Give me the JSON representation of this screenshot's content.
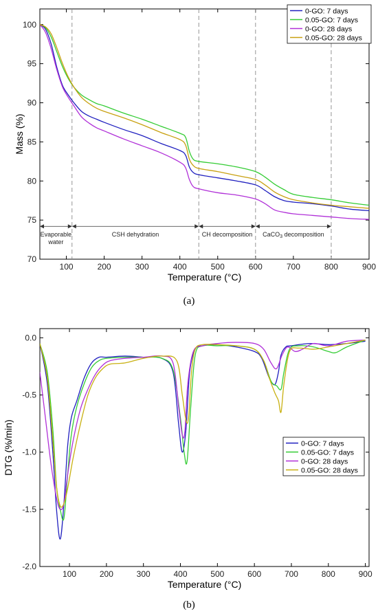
{
  "chart_data": [
    {
      "type": "line",
      "panel_label": "(a)",
      "xlabel": "Temperature (°C)",
      "ylabel": "Mass (%)",
      "xlim": [
        30,
        900
      ],
      "ylim": [
        70,
        102
      ],
      "xticks": [
        100,
        200,
        300,
        400,
        500,
        600,
        700,
        800,
        900
      ],
      "yticks": [
        70,
        75,
        80,
        85,
        90,
        95,
        100
      ],
      "grid": false,
      "legend_position": "top-right",
      "colors": [
        "#1f1fbf",
        "#33cc33",
        "#b030d8",
        "#c8a010"
      ],
      "vlines": [
        115,
        450,
        600,
        800
      ],
      "regions": [
        {
          "label": "Evaporable",
          "label2": "water",
          "x0": 30,
          "x1": 115
        },
        {
          "label": "CSH dehydration",
          "x0": 115,
          "x1": 450
        },
        {
          "label": "CH decomposition",
          "x0": 450,
          "x1": 600
        },
        {
          "label": "CaCO",
          "sub": "3",
          "tail": " decomposition",
          "x0": 600,
          "x1": 800
        }
      ],
      "region_arrow_y": 74.2,
      "series": [
        {
          "name": "0-GO: 7 days",
          "x": [
            30,
            45,
            60,
            75,
            90,
            105,
            120,
            140,
            160,
            180,
            200,
            250,
            300,
            350,
            400,
            415,
            425,
            435,
            450,
            500,
            550,
            600,
            625,
            650,
            675,
            700,
            750,
            800,
            850,
            900
          ],
          "y": [
            100,
            99.4,
            97.5,
            94.5,
            92.2,
            91,
            90,
            88.9,
            88.3,
            87.9,
            87.5,
            86.6,
            85.8,
            84.8,
            83.9,
            83.3,
            81.8,
            81.1,
            80.8,
            80.4,
            80.0,
            79.5,
            78.8,
            78.0,
            77.5,
            77.3,
            77.1,
            76.8,
            76.4,
            76.2
          ]
        },
        {
          "name": "0.05-GO: 7 days",
          "x": [
            30,
            45,
            60,
            75,
            90,
            105,
            120,
            140,
            160,
            180,
            200,
            250,
            300,
            350,
            400,
            415,
            425,
            435,
            450,
            500,
            550,
            600,
            625,
            650,
            675,
            700,
            750,
            800,
            850,
            900
          ],
          "y": [
            100,
            99.6,
            98.4,
            96.5,
            94.6,
            93.1,
            92.0,
            91.0,
            90.4,
            89.9,
            89.6,
            88.7,
            87.9,
            87.0,
            86.1,
            85.6,
            83.8,
            82.8,
            82.5,
            82.2,
            81.8,
            81.2,
            80.5,
            79.6,
            78.9,
            78.3,
            77.9,
            77.6,
            77.2,
            76.9
          ]
        },
        {
          "name": "0-GO: 28 days",
          "x": [
            30,
            45,
            60,
            75,
            90,
            105,
            120,
            140,
            160,
            180,
            200,
            250,
            300,
            350,
            400,
            415,
            425,
            435,
            450,
            500,
            550,
            600,
            625,
            650,
            675,
            700,
            750,
            800,
            850,
            900
          ],
          "y": [
            100,
            99.0,
            96.9,
            94.2,
            92.0,
            90.7,
            89.6,
            88.2,
            87.4,
            86.8,
            86.4,
            85.4,
            84.5,
            83.6,
            82.4,
            81.7,
            80.2,
            79.3,
            79.0,
            78.5,
            78.2,
            77.7,
            77.1,
            76.3,
            76.0,
            75.8,
            75.6,
            75.4,
            75.2,
            75.1
          ]
        },
        {
          "name": "0.05-GO: 28 days",
          "x": [
            30,
            45,
            60,
            75,
            90,
            105,
            120,
            140,
            160,
            180,
            200,
            250,
            300,
            350,
            400,
            415,
            425,
            435,
            450,
            500,
            550,
            600,
            625,
            650,
            675,
            700,
            750,
            800,
            850,
            900
          ],
          "y": [
            100,
            99.7,
            98.8,
            97.0,
            95.0,
            93.3,
            92.0,
            90.7,
            89.9,
            89.3,
            88.9,
            88.1,
            87.2,
            86.2,
            85.3,
            84.6,
            82.8,
            82.0,
            81.6,
            81.2,
            80.7,
            80.2,
            79.5,
            78.6,
            78.0,
            77.6,
            77.2,
            76.9,
            76.7,
            76.5
          ]
        }
      ]
    },
    {
      "type": "line",
      "panel_label": "(b)",
      "xlabel": "Temperature (°C)",
      "ylabel": "DTG (%/min)",
      "xlim": [
        20,
        910
      ],
      "ylim": [
        -2.0,
        0.08
      ],
      "xticks": [
        100,
        200,
        300,
        400,
        500,
        600,
        700,
        800,
        900
      ],
      "yticks": [
        -2.0,
        -1.5,
        -1.0,
        -0.5,
        0.0
      ],
      "ytick_labels": [
        "-2.0",
        "-1.5",
        "-1.0",
        "-0.5",
        "0.0"
      ],
      "grid": false,
      "legend_position": "center-right",
      "colors": [
        "#1f1fbf",
        "#33cc33",
        "#b030d8",
        "#c8b010"
      ],
      "series": [
        {
          "name": "0-GO: 7 days",
          "x": [
            20,
            40,
            55,
            65,
            75,
            85,
            95,
            105,
            120,
            140,
            160,
            180,
            200,
            250,
            300,
            350,
            380,
            395,
            405,
            415,
            425,
            440,
            460,
            500,
            550,
            600,
            620,
            640,
            655,
            665,
            672,
            685,
            700,
            750,
            800,
            850,
            900
          ],
          "y": [
            -0.05,
            -0.4,
            -1.0,
            -1.5,
            -1.76,
            -1.45,
            -0.95,
            -0.7,
            -0.55,
            -0.35,
            -0.22,
            -0.17,
            -0.17,
            -0.16,
            -0.17,
            -0.18,
            -0.3,
            -0.75,
            -1.0,
            -0.8,
            -0.3,
            -0.1,
            -0.07,
            -0.06,
            -0.08,
            -0.12,
            -0.18,
            -0.35,
            -0.41,
            -0.3,
            -0.15,
            -0.08,
            -0.07,
            -0.05,
            -0.06,
            -0.05,
            -0.03
          ]
        },
        {
          "name": "0.05-GO: 7 days",
          "x": [
            20,
            40,
            55,
            65,
            75,
            85,
            95,
            105,
            120,
            140,
            160,
            180,
            200,
            250,
            300,
            350,
            380,
            400,
            410,
            418,
            428,
            440,
            460,
            500,
            550,
            600,
            625,
            645,
            660,
            672,
            680,
            695,
            720,
            760,
            800,
            820,
            850,
            900
          ],
          "y": [
            -0.05,
            -0.3,
            -0.8,
            -1.3,
            -1.5,
            -1.58,
            -1.2,
            -0.85,
            -0.6,
            -0.4,
            -0.26,
            -0.2,
            -0.18,
            -0.17,
            -0.17,
            -0.18,
            -0.28,
            -0.7,
            -1.0,
            -1.08,
            -0.6,
            -0.15,
            -0.07,
            -0.07,
            -0.07,
            -0.1,
            -0.2,
            -0.38,
            -0.42,
            -0.45,
            -0.3,
            -0.1,
            -0.07,
            -0.08,
            -0.12,
            -0.13,
            -0.08,
            -0.02
          ]
        },
        {
          "name": "0-GO: 28 days",
          "x": [
            20,
            35,
            50,
            65,
            75,
            85,
            95,
            110,
            130,
            150,
            170,
            190,
            210,
            250,
            300,
            350,
            380,
            395,
            405,
            412,
            420,
            435,
            460,
            500,
            550,
            600,
            625,
            645,
            660,
            675,
            690,
            710,
            730,
            760,
            800,
            850,
            900
          ],
          "y": [
            -0.3,
            -0.7,
            -1.1,
            -1.4,
            -1.5,
            -1.45,
            -1.2,
            -0.9,
            -0.62,
            -0.45,
            -0.32,
            -0.24,
            -0.2,
            -0.18,
            -0.17,
            -0.16,
            -0.22,
            -0.6,
            -0.85,
            -0.82,
            -0.4,
            -0.12,
            -0.07,
            -0.05,
            -0.04,
            -0.05,
            -0.1,
            -0.22,
            -0.27,
            -0.15,
            -0.08,
            -0.12,
            -0.1,
            -0.05,
            -0.07,
            -0.03,
            -0.02
          ]
        },
        {
          "name": "0.05-GO: 28 days",
          "x": [
            20,
            40,
            55,
            65,
            75,
            85,
            95,
            110,
            130,
            150,
            170,
            190,
            210,
            250,
            300,
            350,
            390,
            405,
            415,
            422,
            430,
            440,
            460,
            500,
            550,
            600,
            625,
            640,
            655,
            665,
            672,
            680,
            695,
            720,
            760,
            800,
            850,
            900
          ],
          "y": [
            -0.05,
            -0.35,
            -0.9,
            -1.3,
            -1.47,
            -1.45,
            -1.32,
            -1.05,
            -0.75,
            -0.5,
            -0.35,
            -0.27,
            -0.23,
            -0.22,
            -0.18,
            -0.16,
            -0.2,
            -0.5,
            -0.72,
            -0.7,
            -0.3,
            -0.1,
            -0.06,
            -0.06,
            -0.07,
            -0.1,
            -0.2,
            -0.35,
            -0.48,
            -0.55,
            -0.65,
            -0.4,
            -0.12,
            -0.09,
            -0.1,
            -0.08,
            -0.05,
            -0.02
          ]
        }
      ]
    }
  ]
}
